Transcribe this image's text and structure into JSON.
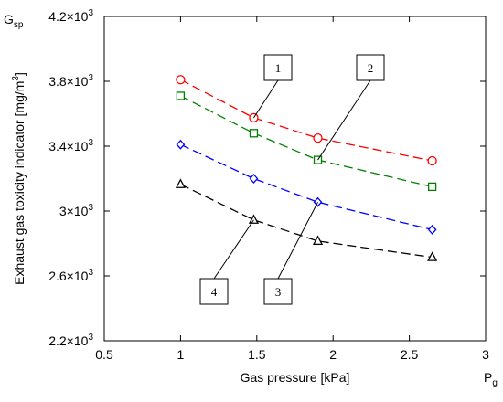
{
  "chart_data": {
    "type": "line",
    "xlabel": "Gas pressure [kPa]",
    "ylabel": "Exhaust gas toxicity indicator [mg/m",
    "ylabel_sup": "3",
    "ylabel_end": "]",
    "x_symbol": "P",
    "x_symbol_sub": "g",
    "y_symbol": "G",
    "y_symbol_sub": "sp",
    "xlim": [
      0.5,
      3
    ],
    "ylim": [
      2200,
      4200
    ],
    "xticks": [
      0.5,
      1,
      1.5,
      2,
      2.5,
      3
    ],
    "xtick_labels": [
      "0.5",
      "1",
      "1.5",
      "2",
      "2.5",
      "3"
    ],
    "yticks": [
      2200,
      2600,
      3000,
      3400,
      3800,
      4200
    ],
    "ytick_labels": [
      "2.2×10",
      "2.6×10",
      "3×10",
      "3.4×10",
      "3.8×10",
      "4.2×10"
    ],
    "ytick_exponent": "3",
    "grid": false,
    "series": [
      {
        "name": "1",
        "color": "#ff0000",
        "marker": "circle",
        "x": [
          1.0,
          1.48,
          1.9,
          2.65
        ],
        "y": [
          3810,
          3575,
          3450,
          3310
        ]
      },
      {
        "name": "2",
        "color": "#008000",
        "marker": "square",
        "x": [
          1.0,
          1.48,
          1.9,
          2.65
        ],
        "y": [
          3710,
          3480,
          3315,
          3150
        ]
      },
      {
        "name": "3",
        "color": "#0000ff",
        "marker": "diamond",
        "x": [
          1.0,
          1.48,
          1.9,
          2.65
        ],
        "y": [
          3410,
          3200,
          3055,
          2885
        ]
      },
      {
        "name": "4",
        "color": "#000000",
        "marker": "triangle",
        "x": [
          1.0,
          1.48,
          1.9,
          2.65
        ],
        "y": [
          3165,
          2945,
          2815,
          2715
        ]
      }
    ],
    "callouts": [
      {
        "label": "1",
        "series": 0,
        "point": 1
      },
      {
        "label": "2",
        "series": 1,
        "point": 2
      },
      {
        "label": "3",
        "series": 2,
        "point": 2
      },
      {
        "label": "4",
        "series": 3,
        "point": 1
      }
    ]
  }
}
